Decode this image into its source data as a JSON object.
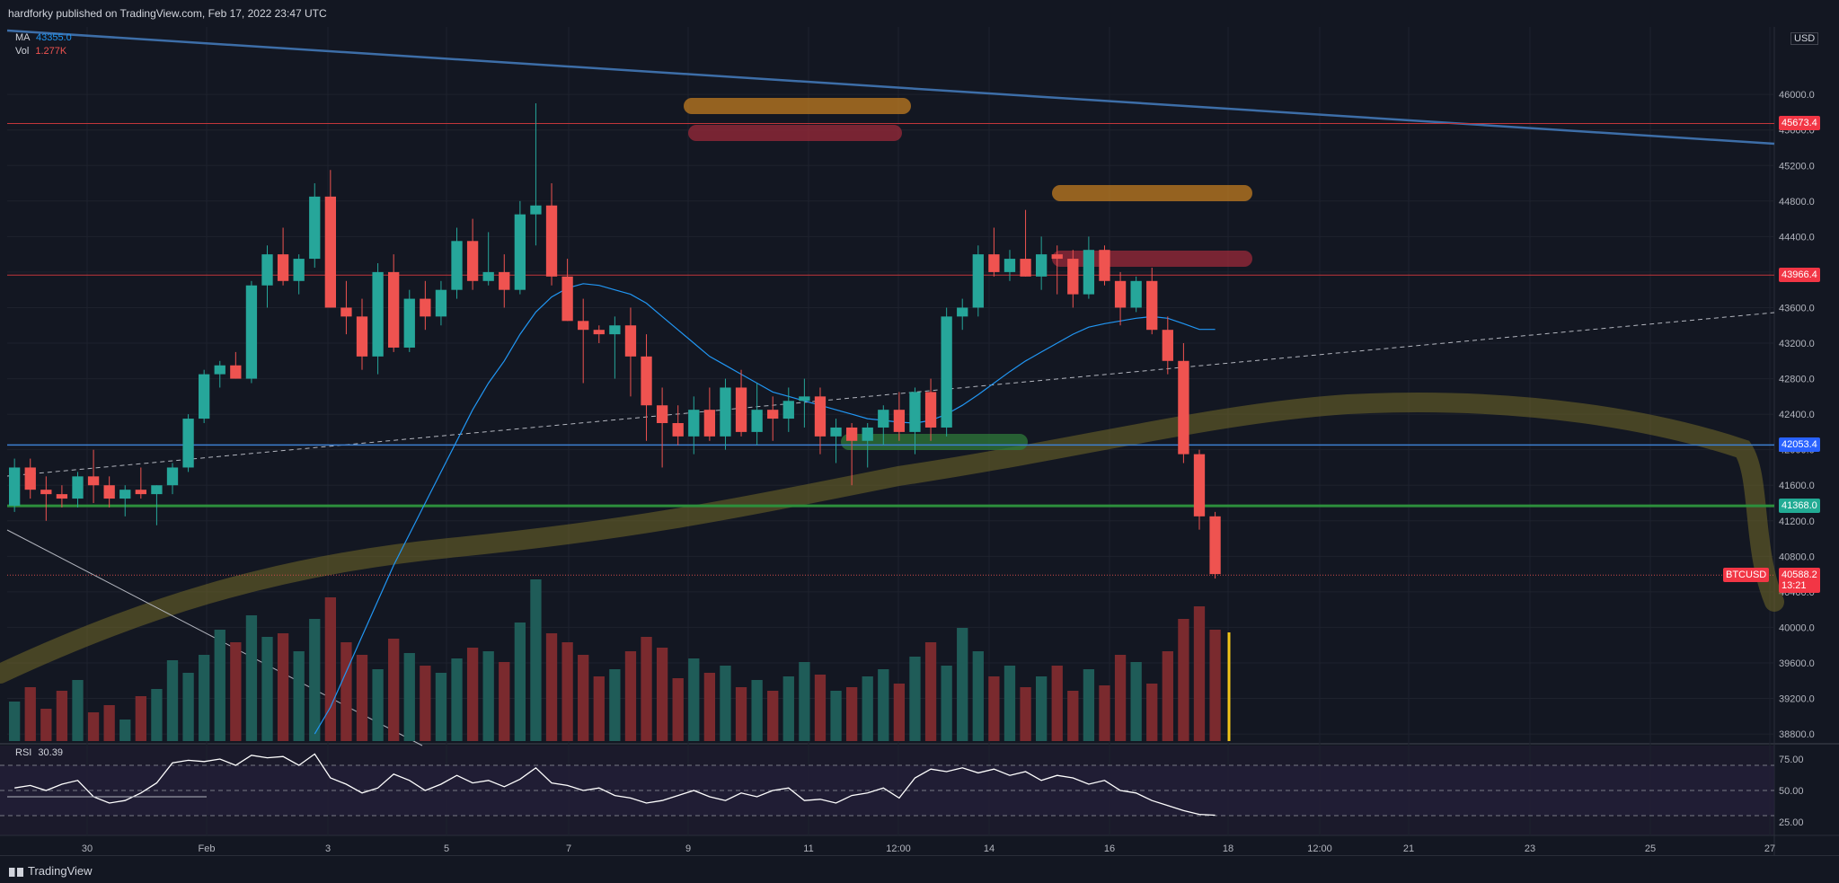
{
  "header": {
    "published": "hardforky published on TradingView.com, Feb 17, 2022 23:47 UTC"
  },
  "legend": {
    "ma_label": "MA",
    "ma_value": "43355.0",
    "vol_label": "Vol",
    "vol_value": "1.277K",
    "rsi_label": "RSI",
    "rsi_value": "30.39"
  },
  "currency": "USD",
  "symbol_tag": "BTCUSD",
  "price_tags": [
    {
      "value": "45673.4",
      "color": "#f23645"
    },
    {
      "value": "43966.4",
      "color": "#f23645"
    },
    {
      "value": "42053.4",
      "color": "#2962ff"
    },
    {
      "value": "41368.0",
      "color": "#22ab94"
    },
    {
      "value": "40588.2",
      "color": "#f23645",
      "sub": "13:21"
    }
  ],
  "footer": {
    "brand": "TradingView"
  },
  "colors": {
    "bg": "#131722",
    "up": "#26a69a",
    "down": "#ef5350",
    "grid": "#1e222d",
    "ma": "#2196f3"
  },
  "chart_data": [
    {
      "type": "candlestick",
      "symbol": "BTCUSD",
      "y_axis_ticks": [
        46000.0,
        45600.0,
        45200.0,
        44800.0,
        44400.0,
        44000.0,
        43600.0,
        43200.0,
        42800.0,
        42400.0,
        42000.0,
        41600.0,
        41200.0,
        40800.0,
        40400.0,
        40000.0,
        39600.0,
        39200.0,
        38800.0
      ],
      "y_tick_labels": [
        "46000.0",
        "45600.0",
        "45200.0",
        "44800.0",
        "44400.0",
        "44000.0",
        "43600.0",
        "43200.0",
        "42800.0",
        "42400.0",
        "42000.0",
        "41600.0",
        "41200.0",
        "40800.0",
        "40400.0",
        "40000.0",
        "39600.0",
        "39200.0",
        "38800.0"
      ],
      "ylim": [
        38720,
        46760
      ],
      "x_tick_labels": [
        "30",
        "Feb",
        "3",
        "5",
        "7",
        "9",
        "11",
        "12:00",
        "14",
        "16",
        "18",
        "12:00",
        "21",
        "23",
        "25",
        "27"
      ],
      "horizontal_levels": [
        45673.4,
        43966.4,
        42053.4,
        41368.0,
        40588.2
      ],
      "candles": [
        [
          41370,
          41900,
          41300,
          41800
        ],
        [
          41800,
          41900,
          41450,
          41550
        ],
        [
          41550,
          41700,
          41200,
          41500
        ],
        [
          41500,
          41600,
          41350,
          41450
        ],
        [
          41450,
          41750,
          41350,
          41700
        ],
        [
          41700,
          42000,
          41400,
          41600
        ],
        [
          41600,
          41700,
          41350,
          41450
        ],
        [
          41450,
          41600,
          41250,
          41550
        ],
        [
          41550,
          41800,
          41450,
          41500
        ],
        [
          41500,
          41600,
          41150,
          41600
        ],
        [
          41600,
          41850,
          41500,
          41800
        ],
        [
          41800,
          42400,
          41750,
          42350
        ],
        [
          42350,
          42900,
          42300,
          42850
        ],
        [
          42850,
          43000,
          42700,
          42950
        ],
        [
          42950,
          43100,
          42800,
          42800
        ],
        [
          42800,
          43900,
          42750,
          43850
        ],
        [
          43850,
          44300,
          43600,
          44200
        ],
        [
          44200,
          44500,
          43850,
          43900
        ],
        [
          43900,
          44200,
          43750,
          44150
        ],
        [
          44150,
          45000,
          44050,
          44850
        ],
        [
          44850,
          45150,
          43600,
          43600
        ],
        [
          43600,
          43900,
          43300,
          43500
        ],
        [
          43500,
          43700,
          42900,
          43050
        ],
        [
          43050,
          44100,
          42850,
          44000
        ],
        [
          44000,
          44200,
          43100,
          43150
        ],
        [
          43150,
          43800,
          43100,
          43700
        ],
        [
          43700,
          43900,
          43350,
          43500
        ],
        [
          43500,
          43900,
          43400,
          43800
        ],
        [
          43800,
          44500,
          43700,
          44350
        ],
        [
          44350,
          44600,
          43800,
          43900
        ],
        [
          43900,
          44450,
          43850,
          44000
        ],
        [
          44000,
          44200,
          43600,
          43800
        ],
        [
          43800,
          44800,
          43750,
          44650
        ],
        [
          44650,
          45900,
          44300,
          44750
        ],
        [
          44750,
          45000,
          43850,
          43950
        ],
        [
          43950,
          44150,
          43450,
          43450
        ],
        [
          43450,
          43700,
          42750,
          43350
        ],
        [
          43350,
          43400,
          43200,
          43300
        ],
        [
          43300,
          43500,
          42800,
          43400
        ],
        [
          43400,
          43600,
          42600,
          43050
        ],
        [
          43050,
          43300,
          42100,
          42500
        ],
        [
          42500,
          42700,
          41800,
          42300
        ],
        [
          42300,
          42500,
          42050,
          42150
        ],
        [
          42150,
          42600,
          41950,
          42450
        ],
        [
          42450,
          42700,
          42100,
          42150
        ],
        [
          42150,
          42800,
          42000,
          42700
        ],
        [
          42700,
          42900,
          42150,
          42200
        ],
        [
          42200,
          42750,
          42050,
          42450
        ],
        [
          42450,
          42600,
          42100,
          42350
        ],
        [
          42350,
          42700,
          42200,
          42550
        ],
        [
          42550,
          42800,
          42250,
          42600
        ],
        [
          42600,
          42700,
          41950,
          42150
        ],
        [
          42150,
          42350,
          41850,
          42250
        ],
        [
          42250,
          42300,
          41600,
          42100
        ],
        [
          42100,
          42300,
          41800,
          42250
        ],
        [
          42250,
          42500,
          42050,
          42450
        ],
        [
          42450,
          42650,
          42100,
          42200
        ],
        [
          42200,
          42700,
          41950,
          42650
        ],
        [
          42650,
          42800,
          42100,
          42250
        ],
        [
          42250,
          43600,
          42150,
          43500
        ],
        [
          43500,
          43700,
          43350,
          43600
        ],
        [
          43600,
          44300,
          43500,
          44200
        ],
        [
          44200,
          44500,
          43950,
          44000
        ],
        [
          44000,
          44250,
          43900,
          44150
        ],
        [
          44150,
          44700,
          43950,
          43950
        ],
        [
          43950,
          44400,
          43800,
          44200
        ],
        [
          44200,
          44300,
          43750,
          44150
        ],
        [
          44150,
          44250,
          43600,
          43750
        ],
        [
          43750,
          44400,
          43700,
          44250
        ],
        [
          44250,
          44300,
          43850,
          43900
        ],
        [
          43900,
          44000,
          43400,
          43600
        ],
        [
          43600,
          43950,
          43550,
          43900
        ],
        [
          43900,
          44050,
          43300,
          43350
        ],
        [
          43350,
          43500,
          42850,
          43000
        ],
        [
          43000,
          43200,
          41850,
          41950
        ],
        [
          41950,
          42000,
          41100,
          41250
        ],
        [
          41250,
          41300,
          40550,
          40600
        ]
      ],
      "volumes": [
        22,
        30,
        18,
        28,
        34,
        16,
        20,
        12,
        25,
        29,
        45,
        38,
        48,
        62,
        55,
        70,
        58,
        60,
        50,
        68,
        80,
        55,
        48,
        40,
        57,
        49,
        42,
        38,
        46,
        52,
        50,
        44,
        66,
        90,
        60,
        55,
        48,
        36,
        40,
        50,
        58,
        52,
        35,
        46,
        38,
        42,
        30,
        34,
        28,
        36,
        44,
        37,
        28,
        30,
        36,
        40,
        32,
        47,
        55,
        42,
        63,
        50,
        36,
        42,
        30,
        36,
        42,
        28,
        40,
        31,
        48,
        44,
        32,
        50,
        68,
        75,
        62
      ],
      "ma_20": [
        null,
        null,
        null,
        null,
        null,
        null,
        null,
        null,
        null,
        null,
        null,
        null,
        null,
        null,
        null,
        null,
        null,
        null,
        null,
        38800,
        39100,
        39500,
        39900,
        40300,
        40700,
        41050,
        41400,
        41750,
        42100,
        42450,
        42750,
        43000,
        43300,
        43550,
        43720,
        43820,
        43870,
        43850,
        43800,
        43750,
        43650,
        43500,
        43350,
        43200,
        43050,
        42950,
        42850,
        42750,
        42650,
        42600,
        42550,
        42500,
        42450,
        42400,
        42350,
        42330,
        42310,
        42300,
        42330,
        42400,
        42500,
        42620,
        42750,
        42880,
        43000,
        43100,
        43200,
        43300,
        43380,
        43420,
        43450,
        43480,
        43500,
        43480,
        43420,
        43355,
        43355
      ],
      "rsi": [
        52,
        54,
        50,
        55,
        58,
        45,
        40,
        42,
        48,
        56,
        72,
        74,
        73,
        75,
        70,
        78,
        76,
        77,
        70,
        79,
        60,
        55,
        48,
        52,
        63,
        58,
        50,
        55,
        62,
        56,
        58,
        53,
        59,
        68,
        56,
        54,
        50,
        52,
        46,
        44,
        40,
        42,
        46,
        50,
        45,
        42,
        48,
        45,
        50,
        52,
        42,
        43,
        40,
        46,
        48,
        52,
        44,
        60,
        67,
        65,
        68,
        64,
        67,
        62,
        65,
        58,
        62,
        60,
        55,
        58,
        50,
        48,
        42,
        38,
        34,
        31,
        30.39
      ],
      "rsi_ticks": [
        75.0,
        50.0,
        25.0
      ],
      "rsi_tick_labels": [
        "75.00",
        "50.00",
        "25.00"
      ]
    }
  ]
}
